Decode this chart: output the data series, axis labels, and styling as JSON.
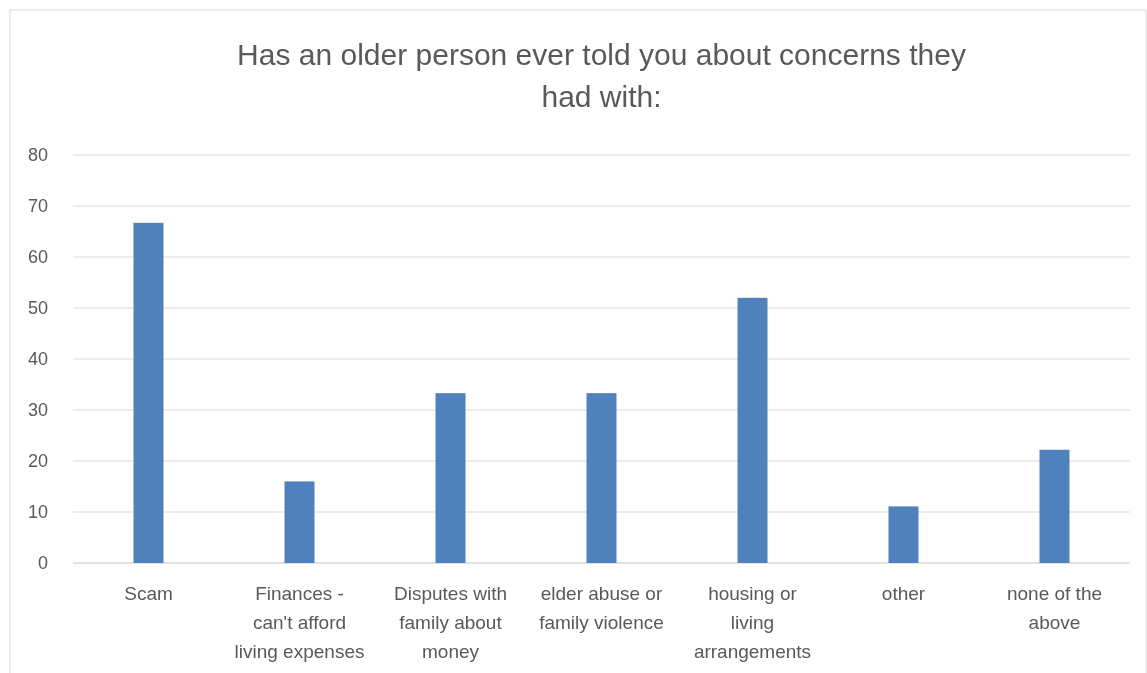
{
  "chart_data": {
    "type": "bar",
    "title": "Has an older person ever told you about concerns they had with:",
    "categories": [
      "Scam",
      "Finances - can't afford living expenses",
      "Disputes with family about money",
      "elder abuse or family violence",
      "housing or living arrangements",
      "other",
      "none of the above"
    ],
    "values": [
      66.7,
      16,
      33.3,
      33.3,
      52,
      11.1,
      22.2
    ],
    "color": "#4f81bd",
    "ylim": [
      0,
      80
    ],
    "yticks": [
      0,
      10,
      20,
      30,
      40,
      50,
      60,
      70,
      80
    ],
    "grid": "y"
  }
}
